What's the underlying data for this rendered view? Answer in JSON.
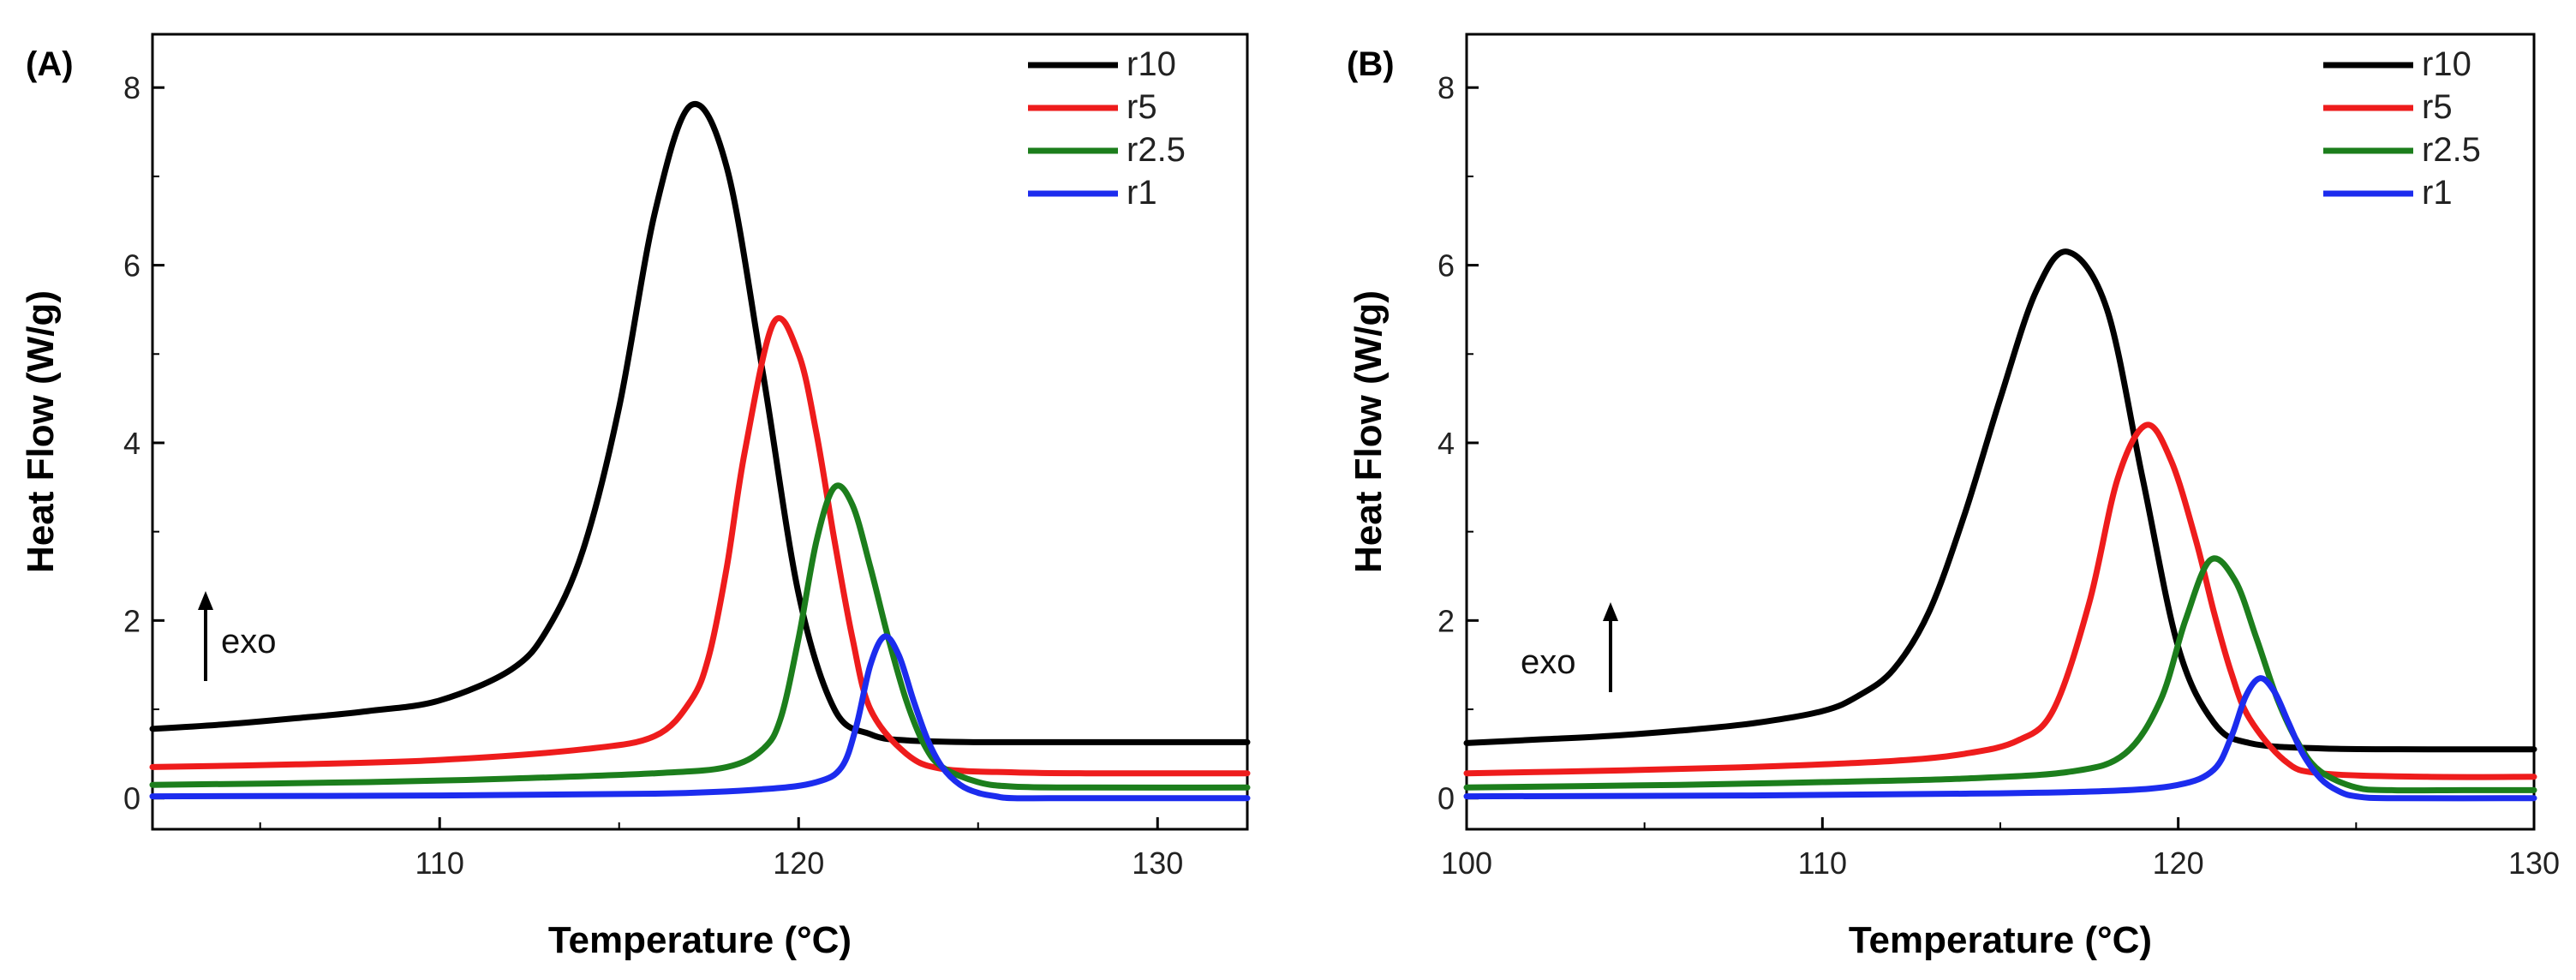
{
  "chart_data": [
    {
      "type": "line",
      "panel_label": "(A)",
      "xlabel": "Temperature (°C)",
      "ylabel": "Heat Flow (W/g)",
      "xlim": [
        102.0,
        132.5
      ],
      "ylim": [
        -0.35,
        8.6
      ],
      "xticks": [
        110,
        120,
        130
      ],
      "yticks": [
        0,
        2,
        4,
        6,
        8
      ],
      "annotation": "exo",
      "legend": "top-right",
      "series": [
        {
          "name": "r10",
          "color": "#000000",
          "x": [
            102,
            104,
            106,
            108,
            110,
            112,
            113,
            114,
            115,
            116,
            117.0,
            118,
            119,
            120,
            121,
            122,
            123,
            125,
            128,
            132.5
          ],
          "y": [
            0.78,
            0.83,
            0.9,
            0.98,
            1.1,
            1.45,
            1.9,
            2.8,
            4.4,
            6.6,
            7.8,
            7.1,
            4.8,
            2.3,
            1.0,
            0.72,
            0.65,
            0.63,
            0.63,
            0.63
          ]
        },
        {
          "name": "r5",
          "color": "#ee1c1c",
          "x": [
            102,
            106,
            110,
            114,
            116,
            117,
            117.5,
            118,
            118.5,
            119.3,
            120,
            120.5,
            121,
            121.5,
            122,
            123,
            124,
            126,
            128,
            132.5
          ],
          "y": [
            0.35,
            0.38,
            0.43,
            0.55,
            0.7,
            1.1,
            1.6,
            2.6,
            3.9,
            5.35,
            5.0,
            4.1,
            2.9,
            1.8,
            1.0,
            0.5,
            0.33,
            0.29,
            0.28,
            0.28
          ]
        },
        {
          "name": "r2.5",
          "color": "#1c7e1c",
          "x": [
            102,
            108,
            112,
            116,
            118,
            119,
            119.5,
            120,
            120.5,
            121.0,
            121.5,
            122,
            122.5,
            123,
            123.5,
            124,
            125,
            126,
            128,
            132.5
          ],
          "y": [
            0.15,
            0.18,
            0.22,
            0.28,
            0.35,
            0.55,
            0.9,
            1.8,
            2.9,
            3.5,
            3.3,
            2.6,
            1.8,
            1.1,
            0.6,
            0.35,
            0.18,
            0.13,
            0.12,
            0.12
          ]
        },
        {
          "name": "r1",
          "color": "#1c2cee",
          "x": [
            102,
            110,
            116,
            119,
            120.5,
            121.2,
            121.6,
            122.0,
            122.4,
            122.8,
            123.2,
            123.6,
            124.0,
            124.5,
            125,
            125.5,
            126,
            128,
            132.5
          ],
          "y": [
            0.02,
            0.03,
            0.05,
            0.1,
            0.18,
            0.35,
            0.8,
            1.5,
            1.82,
            1.6,
            1.1,
            0.65,
            0.35,
            0.15,
            0.06,
            0.02,
            0.0,
            0.0,
            0.0
          ]
        }
      ]
    },
    {
      "type": "line",
      "panel_label": "(B)",
      "xlabel": "Temperature (°C)",
      "ylabel": "Heat Flow (W/g)",
      "xlim": [
        100,
        130
      ],
      "ylim": [
        -0.35,
        8.6
      ],
      "xticks": [
        100,
        110,
        120,
        130
      ],
      "yticks": [
        0,
        2,
        4,
        6,
        8
      ],
      "annotation": "exo",
      "legend": "top-right",
      "series": [
        {
          "name": "r10",
          "color": "#000000",
          "x": [
            100,
            102,
            104,
            106,
            108,
            110,
            111,
            112,
            113,
            114,
            115,
            116,
            116.9,
            118,
            119,
            120,
            121,
            122,
            124,
            127,
            130
          ],
          "y": [
            0.62,
            0.66,
            0.7,
            0.76,
            0.84,
            0.98,
            1.15,
            1.45,
            2.1,
            3.2,
            4.5,
            5.7,
            6.15,
            5.5,
            3.6,
            1.7,
            0.85,
            0.62,
            0.56,
            0.55,
            0.55
          ]
        },
        {
          "name": "r5",
          "color": "#ee1c1c",
          "x": [
            100,
            104,
            108,
            112,
            114,
            115.5,
            116.5,
            117.5,
            118.3,
            119.1,
            119.8,
            120.5,
            121,
            121.5,
            122,
            123,
            124,
            127,
            130
          ],
          "y": [
            0.28,
            0.31,
            0.35,
            0.42,
            0.5,
            0.65,
            1.0,
            2.2,
            3.6,
            4.2,
            3.8,
            2.9,
            2.1,
            1.4,
            0.9,
            0.42,
            0.28,
            0.24,
            0.24
          ]
        },
        {
          "name": "r2.5",
          "color": "#1c7e1c",
          "x": [
            100,
            106,
            110,
            114,
            117,
            118.5,
            119.5,
            120.2,
            120.9,
            121.6,
            122.2,
            122.8,
            123.4,
            124,
            125,
            126,
            128,
            130
          ],
          "y": [
            0.12,
            0.15,
            0.18,
            0.22,
            0.3,
            0.5,
            1.1,
            2.0,
            2.68,
            2.45,
            1.8,
            1.1,
            0.6,
            0.3,
            0.12,
            0.09,
            0.09,
            0.09
          ]
        },
        {
          "name": "r1",
          "color": "#1c2cee",
          "x": [
            100,
            108,
            114,
            118,
            120,
            121,
            121.5,
            121.9,
            122.3,
            122.7,
            123.1,
            123.5,
            124,
            124.5,
            125,
            126,
            130
          ],
          "y": [
            0.02,
            0.03,
            0.05,
            0.08,
            0.15,
            0.32,
            0.7,
            1.15,
            1.35,
            1.2,
            0.85,
            0.5,
            0.22,
            0.08,
            0.02,
            0.0,
            0.0
          ]
        }
      ]
    }
  ]
}
